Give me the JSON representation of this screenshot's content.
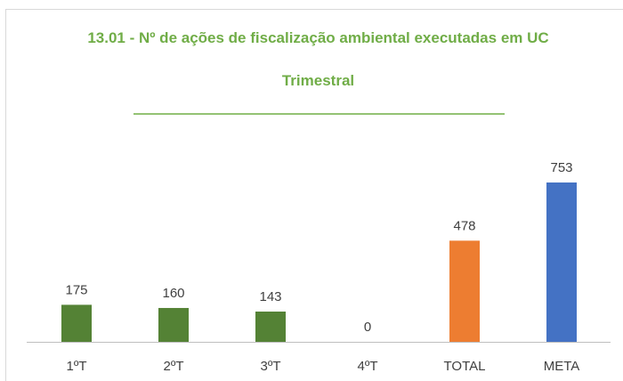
{
  "chart_data": {
    "type": "bar",
    "title": "13.01 - Nº de ações de fiscalização ambiental executadas em UC",
    "subtitle": "Trimestral",
    "categories": [
      "1ºT",
      "2ºT",
      "3ºT",
      "4ºT",
      "TOTAL",
      "META"
    ],
    "values": [
      175,
      160,
      143,
      0,
      478,
      753
    ],
    "colors": [
      "#548235",
      "#548235",
      "#548235",
      "#548235",
      "#ed7d31",
      "#4472c4"
    ]
  }
}
